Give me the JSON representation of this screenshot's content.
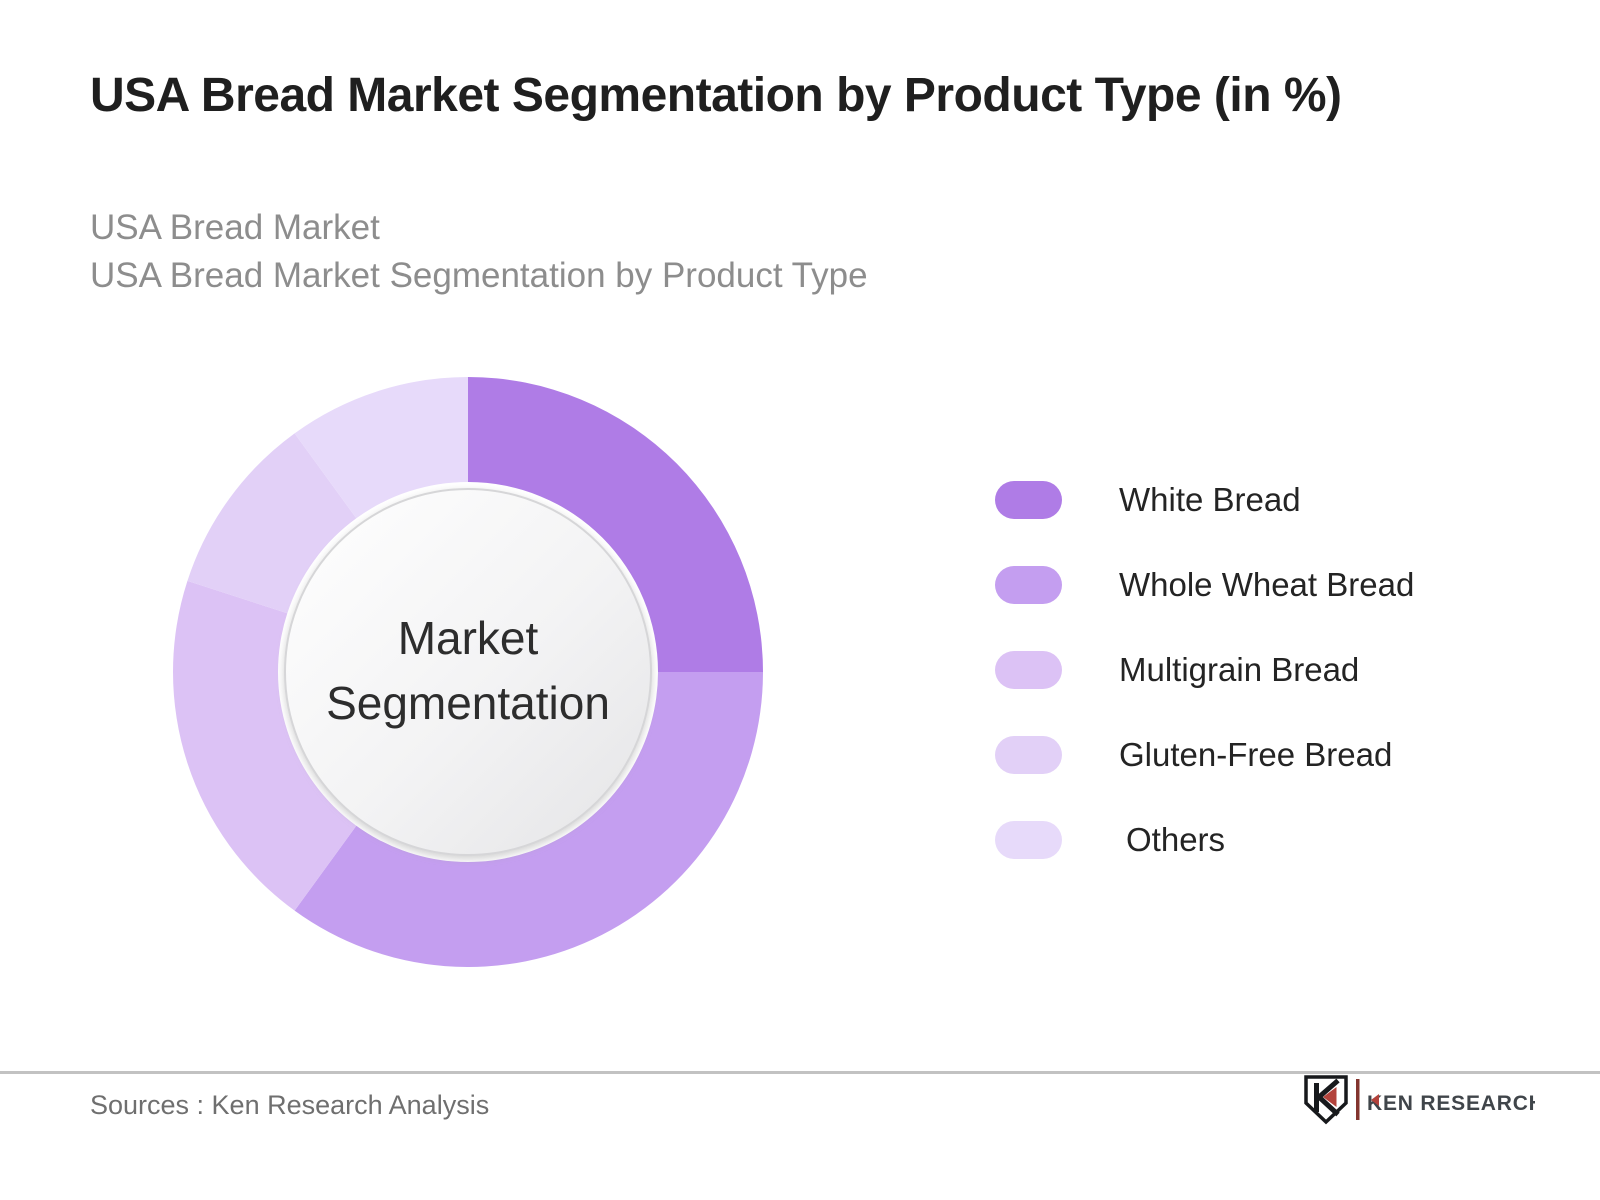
{
  "header": {
    "title": "USA Bread Market Segmentation by Product Type (in %)",
    "subtitle_line1": "USA Bread Market",
    "subtitle_line2": "USA Bread Market Segmentation by Product Type"
  },
  "chart_data": {
    "type": "pie",
    "variant": "donut",
    "title": "USA Bread Market Segmentation by Product Type (in %)",
    "center_label": "Market Segmentation",
    "categories": [
      "White Bread",
      "Whole Wheat Bread",
      "Multigrain Bread",
      "Gluten-Free Bread",
      "Others"
    ],
    "values": [
      25,
      35,
      20,
      10,
      10
    ],
    "unit": "%",
    "colors": [
      "#af7ce6",
      "#c49ef0",
      "#dcc2f5",
      "#e2d0f7",
      "#e7dafa"
    ],
    "start_angle_deg": 0,
    "direction": "clockwise",
    "legend_position": "right",
    "data_labels_shown": false
  },
  "legend": {
    "items": [
      {
        "label": "White Bread",
        "color": "#af7ce6"
      },
      {
        "label": "Whole Wheat Bread",
        "color": "#c49ef0"
      },
      {
        "label": "Multigrain Bread",
        "color": "#dcc2f5"
      },
      {
        "label": "Gluten-Free Bread",
        "color": "#e2d0f7"
      },
      {
        "label": "Others",
        "color": "#e7dafa"
      }
    ]
  },
  "footer": {
    "sources": "Sources : Ken Research Analysis",
    "logo_text": "KEN RESEARCH"
  },
  "style": {
    "accent_dark": "#af7ce6",
    "title_color": "#1f1f1f",
    "subtitle_color": "#8d8d8d",
    "logo_red": "#b2423b",
    "logo_dark": "#40454a"
  }
}
